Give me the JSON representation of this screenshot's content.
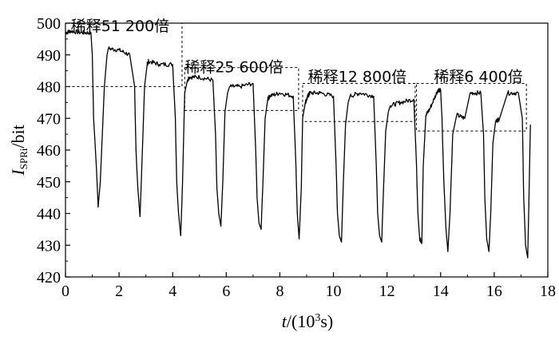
{
  "chart_data": {
    "type": "line",
    "xlabel_var": "t",
    "xlabel_unit_pre": "/(10",
    "xlabel_unit_sup": "3",
    "xlabel_unit_post": "s)",
    "ylabel_var": "I",
    "ylabel_sub": "SPRi",
    "ylabel_unit": "/bit",
    "xlim": [
      0,
      18
    ],
    "ylim": [
      420,
      500
    ],
    "xticks": [
      0,
      2,
      4,
      6,
      8,
      10,
      12,
      14,
      16,
      18
    ],
    "yticks": [
      420,
      430,
      440,
      450,
      460,
      470,
      480,
      490,
      500
    ],
    "annotations": [
      {
        "text": "稀释51 200倍",
        "x": 0.2,
        "y": 497.5,
        "box_x": [
          0,
          4.35
        ],
        "box_y": [
          480,
          500
        ]
      },
      {
        "text": "稀释25 600倍",
        "x": 4.45,
        "y": 484.5,
        "box_x": [
          4.45,
          8.7
        ],
        "box_y": [
          472.5,
          486
        ]
      },
      {
        "text": "稀释12 800倍",
        "x": 9.05,
        "y": 481.5,
        "box_x": [
          8.85,
          13.05
        ],
        "box_y": [
          469,
          481
        ]
      },
      {
        "text": "稀释6 400倍",
        "x": 13.75,
        "y": 481.5,
        "box_x": [
          13.1,
          17.2
        ],
        "box_y": [
          466,
          481
        ]
      }
    ],
    "series": [
      {
        "line_color": "#000000",
        "x": [
          0,
          0.2,
          0.6,
          0.95,
          1.0,
          1.05,
          1.15,
          1.22,
          1.3,
          1.45,
          1.55,
          1.6,
          2.0,
          2.4,
          2.58,
          2.63,
          2.7,
          2.78,
          2.85,
          2.95,
          3.05,
          3.1,
          3.5,
          4.0,
          4.1,
          4.15,
          4.22,
          4.3,
          4.37,
          4.45,
          4.55,
          4.62,
          5.0,
          5.5,
          5.6,
          5.65,
          5.72,
          5.8,
          5.87,
          5.95,
          6.05,
          6.12,
          6.5,
          7.0,
          7.1,
          7.15,
          7.22,
          7.3,
          7.37,
          7.45,
          7.55,
          7.62,
          8.0,
          8.5,
          8.6,
          8.65,
          8.72,
          8.8,
          8.85,
          8.95,
          9.05,
          9.12,
          9.5,
          10.0,
          10.1,
          10.15,
          10.22,
          10.3,
          10.37,
          10.45,
          10.55,
          10.62,
          11.0,
          11.5,
          11.6,
          11.65,
          11.72,
          11.8,
          11.87,
          11.95,
          12.05,
          12.12,
          12.5,
          13.0,
          13.1,
          13.15,
          13.22,
          13.3,
          13.35,
          13.45,
          13.6,
          13.9,
          14.0,
          14.05,
          14.12,
          14.2,
          14.27,
          14.35,
          14.45,
          14.6,
          14.9,
          15.1,
          15.5,
          15.6,
          15.65,
          15.72,
          15.8,
          15.87,
          15.95,
          16.05,
          16.2,
          16.5,
          16.9,
          17.05,
          17.1,
          17.17,
          17.25,
          17.35
        ],
        "y": [
          497,
          497.5,
          497,
          497,
          490,
          470,
          455,
          442,
          450,
          480,
          490,
          492,
          491.5,
          490,
          480,
          460,
          448,
          439,
          455,
          480,
          487,
          488,
          487,
          487,
          470,
          450,
          440,
          433,
          450,
          478,
          482,
          483,
          483,
          482,
          465,
          448,
          440,
          436,
          450,
          472,
          478,
          480,
          480,
          481,
          460,
          445,
          437,
          435,
          450,
          470,
          476,
          477,
          478,
          477,
          455,
          440,
          432,
          448,
          470,
          475,
          477,
          478,
          478,
          477,
          455,
          440,
          433,
          431,
          450,
          468,
          475,
          477,
          478,
          477,
          455,
          440,
          433,
          431,
          448,
          466,
          472,
          474,
          475,
          476,
          455,
          440,
          432,
          431,
          455,
          471,
          473,
          479,
          479,
          470,
          450,
          435,
          428,
          440,
          465,
          471,
          470,
          478,
          478,
          465,
          445,
          432,
          428,
          440,
          462,
          469,
          470,
          478,
          478,
          470,
          445,
          430,
          426,
          468
        ]
      }
    ]
  }
}
